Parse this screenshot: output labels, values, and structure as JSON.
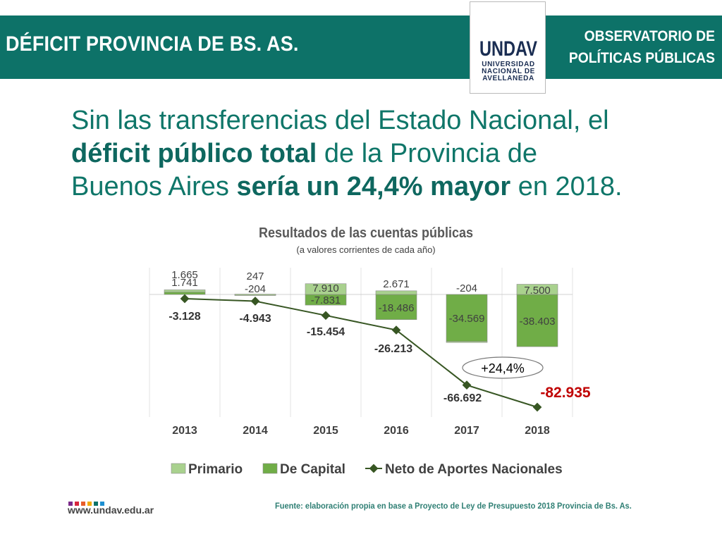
{
  "header": {
    "title": "DÉFICIT PROVINCIA DE BS. AS.",
    "right_line1": "OBSERVATORIO DE",
    "right_line2": "POLÍTICAS PÚBLICAS",
    "bg_color": "#0d7268"
  },
  "logo": {
    "mark": "UNDAV",
    "line1": "UNIVERSIDAD",
    "line2": "NACIONAL DE",
    "line3": "AVELLANEDA",
    "color": "#1a2d52"
  },
  "headline": {
    "part1": "Sin las transferencias del Estado Nacional, el",
    "bold1": "déficit público total",
    "part2": " de la Provincia de",
    "part3": "Buenos Aires ",
    "bold2": "sería un 24,4% mayor",
    "part4": " en 2018."
  },
  "chart_data": {
    "type": "bar",
    "title": "Resultados de las cuentas públicas",
    "subtitle": "(a valores corrientes de cada año)",
    "categories": [
      "2013",
      "2014",
      "2015",
      "2016",
      "2017",
      "2018"
    ],
    "series": [
      {
        "name": "Primario",
        "kind": "stacked-bar",
        "color": "#a9d18e",
        "values": [
          1665,
          247,
          7910,
          2671,
          -204,
          7500
        ],
        "labels": [
          "1.665",
          "247",
          "7.910",
          "2.671",
          "-204",
          "7.500"
        ]
      },
      {
        "name": "De Capital",
        "kind": "stacked-bar",
        "color": "#70ad47",
        "values": [
          1741,
          -204,
          -7831,
          -18486,
          -34569,
          -38403
        ],
        "labels": [
          "1.741",
          "-204",
          "-7.831",
          "-18.486",
          "-34.569",
          "-38.403"
        ]
      },
      {
        "name": "Neto de Aportes Nacionales",
        "kind": "line",
        "color": "#375623",
        "values": [
          -3128,
          -4943,
          -15454,
          -26213,
          -66692,
          -82935
        ],
        "labels": [
          "-3.128",
          "-4.943",
          "-15.454",
          "-26.213",
          "-66.692",
          "-82.935"
        ]
      }
    ],
    "ylim": [
      -90000,
      18000
    ],
    "grid": "vertical",
    "legend": "bottom",
    "annotation": "+24,4%",
    "highlight_color": "#c00000",
    "xlabel": "",
    "ylabel": ""
  },
  "footer": {
    "url": "www.undav.edu.ar",
    "source": "Fuente: elaboración propia en base a Proyecto de Ley de Presupuesto 2018 Provincia de Bs. As.",
    "dot_colors": [
      "#7b2a8a",
      "#d7263d",
      "#e85d2a",
      "#f2a900",
      "#0d7268",
      "#1d8fd1"
    ]
  }
}
